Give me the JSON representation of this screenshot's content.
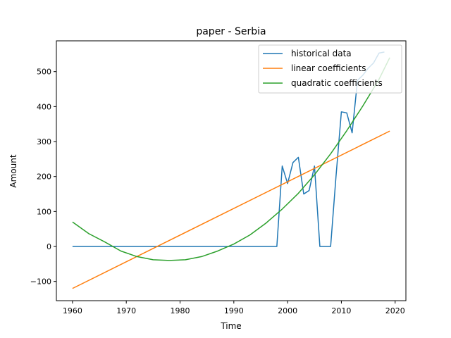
{
  "chart_data": {
    "type": "line",
    "title": "paper - Serbia",
    "xlabel": "Time",
    "ylabel": "Amount",
    "xlim": [
      1957,
      2022
    ],
    "ylim": [
      -155,
      588
    ],
    "xticks": [
      1960,
      1970,
      1980,
      1990,
      2000,
      2010,
      2020
    ],
    "yticks": [
      -100,
      0,
      100,
      200,
      300,
      400,
      500
    ],
    "grid": false,
    "legend_position": "top-right",
    "series": [
      {
        "name": "historical data",
        "color": "#1f77b4",
        "x": [
          1960,
          1961,
          1962,
          1963,
          1964,
          1965,
          1966,
          1967,
          1968,
          1969,
          1970,
          1971,
          1972,
          1973,
          1974,
          1975,
          1976,
          1977,
          1978,
          1979,
          1980,
          1981,
          1982,
          1983,
          1984,
          1985,
          1986,
          1987,
          1988,
          1989,
          1990,
          1991,
          1992,
          1993,
          1994,
          1995,
          1996,
          1997,
          1998,
          1999,
          2000,
          2001,
          2002,
          2003,
          2004,
          2005,
          2006,
          2007,
          2008,
          2009,
          2010,
          2011,
          2012,
          2013,
          2014,
          2015,
          2016,
          2017,
          2018
        ],
        "y": [
          0,
          0,
          0,
          0,
          0,
          0,
          0,
          0,
          0,
          0,
          0,
          0,
          0,
          0,
          0,
          0,
          0,
          0,
          0,
          0,
          0,
          0,
          0,
          0,
          0,
          0,
          0,
          0,
          0,
          0,
          0,
          0,
          0,
          0,
          0,
          0,
          0,
          0,
          0,
          230,
          180,
          240,
          255,
          150,
          160,
          230,
          0,
          0,
          0,
          200,
          385,
          382,
          325,
          475,
          490,
          510,
          525,
          553,
          556
        ]
      },
      {
        "name": "linear coefficients",
        "color": "#ff7f0e",
        "x": [
          1960,
          2019
        ],
        "y": [
          -120,
          330
        ]
      },
      {
        "name": "quadratic coefficients",
        "color": "#2ca02c",
        "x": [
          1960,
          1963,
          1966,
          1969,
          1972,
          1975,
          1978,
          1981,
          1984,
          1987,
          1990,
          1993,
          1996,
          1999,
          2002,
          2005,
          2008,
          2011,
          2014,
          2017,
          2019
        ],
        "y": [
          70,
          37,
          13,
          -13,
          -29,
          -38,
          -40,
          -38,
          -29,
          -13,
          7,
          33,
          67,
          107,
          152,
          205,
          265,
          331,
          402,
          478,
          540
        ]
      }
    ]
  }
}
